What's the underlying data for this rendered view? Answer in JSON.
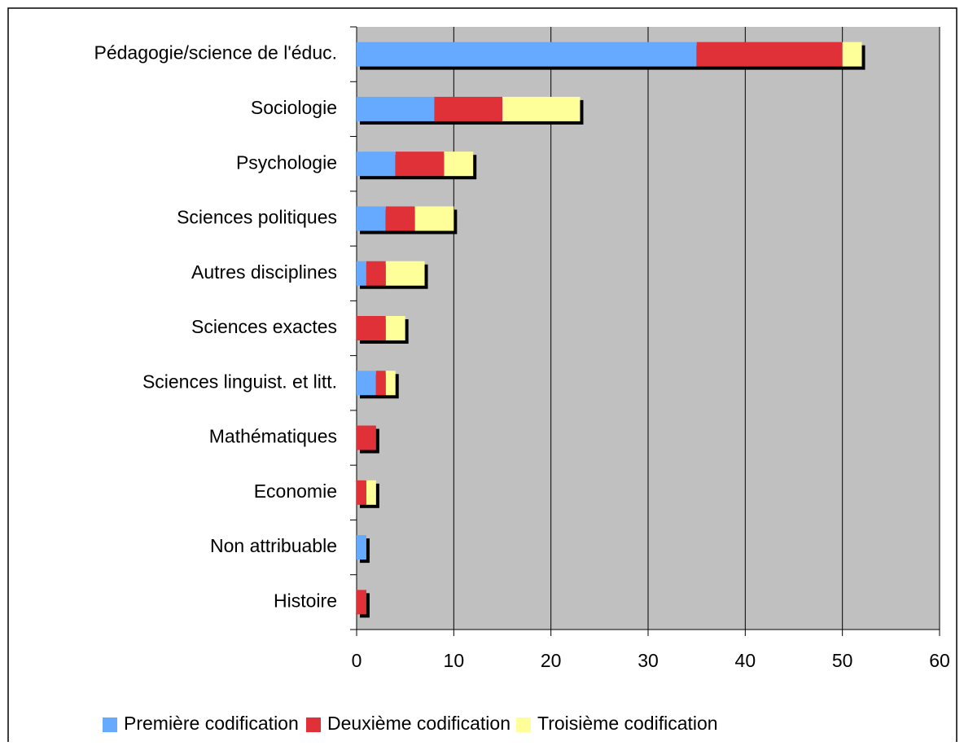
{
  "chart_data": {
    "type": "stacked_bar_horizontal",
    "categories": [
      "Pédagogie/science de l'éduc.",
      "Sociologie",
      "Psychologie",
      "Sciences politiques",
      "Autres disciplines",
      "Sciences exactes",
      "Sciences linguist. et litt.",
      "Mathématiques",
      "Economie",
      "Non attribuable",
      "Histoire"
    ],
    "series": [
      {
        "name": "Première codification",
        "color": "#66aaff",
        "values": [
          35,
          8,
          4,
          3,
          1,
          0,
          2,
          0,
          0,
          1,
          0
        ]
      },
      {
        "name": "Deuxième codification",
        "color": "#e03038",
        "values": [
          15,
          7,
          5,
          3,
          2,
          3,
          1,
          2,
          1,
          0,
          1
        ]
      },
      {
        "name": "Troisième codification",
        "color": "#ffff99",
        "values": [
          2,
          8,
          3,
          4,
          4,
          2,
          1,
          0,
          1,
          0,
          0
        ]
      }
    ],
    "xlim": [
      0,
      60
    ],
    "xticks": [
      0,
      10,
      20,
      30,
      40,
      50,
      60
    ],
    "grid": true,
    "legend": "bottom"
  }
}
